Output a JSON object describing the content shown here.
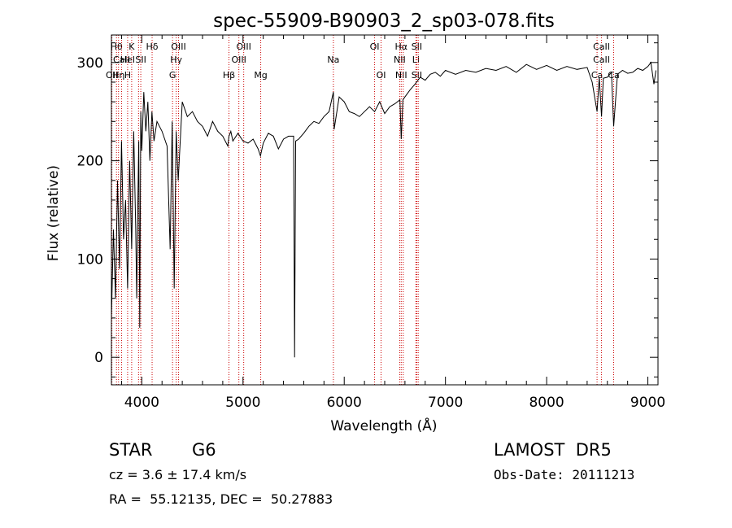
{
  "chart_data": {
    "type": "line",
    "title": "spec-55909-B90903_2_sp03-078.fits",
    "xlabel": "Wavelength (Å)",
    "ylabel": "Flux (relative)",
    "xlim": [
      3700,
      9100
    ],
    "ylim": [
      -28,
      328
    ],
    "xticks": [
      4000,
      5000,
      6000,
      7000,
      8000,
      9000
    ],
    "yticks": [
      0,
      100,
      200,
      300
    ],
    "grid": false,
    "line_color": "#000000",
    "marker_line_color": "#cc0000",
    "series": [
      {
        "x": [
          3700,
          3720,
          3740,
          3760,
          3780,
          3800,
          3820,
          3840,
          3860,
          3880,
          3900,
          3920,
          3940,
          3950,
          3960,
          3970,
          3980,
          3990,
          4000,
          4020,
          4040,
          4060,
          4080,
          4100,
          4120,
          4150,
          4200,
          4250,
          4280,
          4300,
          4320,
          4340,
          4360,
          4400,
          4450,
          4500,
          4550,
          4600,
          4650,
          4700,
          4750,
          4800,
          4850,
          4861,
          4880,
          4900,
          4950,
          5000,
          5050,
          5100,
          5150,
          5172,
          5200,
          5250,
          5300,
          5350,
          5400,
          5450,
          5500,
          5510,
          5520,
          5550,
          5600,
          5650,
          5700,
          5750,
          5800,
          5850,
          5893,
          5900,
          5950,
          6000,
          6050,
          6100,
          6150,
          6200,
          6250,
          6300,
          6350,
          6400,
          6450,
          6500,
          6550,
          6563,
          6580,
          6600,
          6650,
          6700,
          6750,
          6800,
          6850,
          6900,
          6950,
          7000,
          7100,
          7200,
          7300,
          7400,
          7500,
          7600,
          7700,
          7800,
          7900,
          8000,
          8100,
          8200,
          8300,
          8400,
          8450,
          8498,
          8520,
          8542,
          8560,
          8600,
          8640,
          8662,
          8700,
          8750,
          8800,
          8850,
          8900,
          8950,
          9000,
          9030,
          9060,
          9080
        ],
        "values": [
          40,
          130,
          60,
          180,
          90,
          220,
          120,
          160,
          70,
          200,
          110,
          230,
          130,
          60,
          150,
          220,
          30,
          250,
          210,
          270,
          230,
          260,
          200,
          250,
          220,
          240,
          230,
          215,
          110,
          240,
          70,
          230,
          180,
          260,
          245,
          250,
          240,
          235,
          225,
          240,
          230,
          225,
          215,
          225,
          230,
          220,
          228,
          220,
          218,
          222,
          212,
          205,
          218,
          228,
          225,
          212,
          222,
          225,
          225,
          0,
          220,
          222,
          228,
          235,
          240,
          238,
          245,
          250,
          270,
          232,
          265,
          260,
          250,
          248,
          245,
          250,
          255,
          250,
          260,
          248,
          255,
          258,
          262,
          222,
          262,
          265,
          272,
          278,
          285,
          282,
          288,
          290,
          286,
          292,
          288,
          292,
          290,
          294,
          292,
          296,
          290,
          298,
          293,
          297,
          292,
          296,
          293,
          295,
          280,
          250,
          285,
          245,
          284,
          285,
          290,
          235,
          288,
          292,
          289,
          290,
          294,
          292,
          296,
          300,
          278,
          292
        ]
      }
    ],
    "lines": [
      {
        "x": 3705,
        "labels": [
          "",
          "",
          "OII"
        ]
      },
      {
        "x": 3750,
        "labels": [
          "Hθ",
          "",
          ""
        ]
      },
      {
        "x": 3770,
        "labels": [
          "",
          "",
          "Hη"
        ]
      },
      {
        "x": 3800,
        "labels": [
          "",
          "CaII",
          ""
        ]
      },
      {
        "x": 3860,
        "labels": [
          "",
          "HeI",
          "H"
        ]
      },
      {
        "x": 3900,
        "labels": [
          "K",
          "",
          ""
        ]
      },
      {
        "x": 3968,
        "labels": [
          "",
          "",
          ""
        ]
      },
      {
        "x": 3990,
        "labels": [
          "",
          "SII",
          ""
        ]
      },
      {
        "x": 4102,
        "labels": [
          "Hδ",
          "",
          ""
        ]
      },
      {
        "x": 4304,
        "labels": [
          "",
          "",
          "G"
        ]
      },
      {
        "x": 4340,
        "labels": [
          "",
          "Hγ",
          ""
        ]
      },
      {
        "x": 4363,
        "labels": [
          "OIII",
          "",
          ""
        ]
      },
      {
        "x": 4861,
        "labels": [
          "",
          "",
          "Hβ"
        ]
      },
      {
        "x": 4959,
        "labels": [
          "",
          "OIII",
          ""
        ]
      },
      {
        "x": 5007,
        "labels": [
          "OIII",
          "",
          ""
        ]
      },
      {
        "x": 5175,
        "labels": [
          "",
          "",
          "Mg"
        ]
      },
      {
        "x": 5893,
        "labels": [
          "",
          "Na",
          ""
        ]
      },
      {
        "x": 6300,
        "labels": [
          "OI",
          "",
          ""
        ]
      },
      {
        "x": 6364,
        "labels": [
          "",
          "",
          "OI"
        ]
      },
      {
        "x": 6548,
        "labels": [
          "",
          "NII",
          ""
        ]
      },
      {
        "x": 6563,
        "labels": [
          "Hα",
          "",
          "NII"
        ]
      },
      {
        "x": 6583,
        "labels": [
          "",
          "",
          ""
        ]
      },
      {
        "x": 6708,
        "labels": [
          "",
          "Li",
          ""
        ]
      },
      {
        "x": 6717,
        "labels": [
          "SII",
          "",
          "SII"
        ]
      },
      {
        "x": 6731,
        "labels": [
          "",
          "",
          ""
        ]
      },
      {
        "x": 8498,
        "labels": [
          "",
          "",
          "Ca"
        ]
      },
      {
        "x": 8542,
        "labels": [
          "CaII",
          "CaII",
          ""
        ]
      },
      {
        "x": 8662,
        "labels": [
          "",
          "",
          "Ca"
        ]
      }
    ]
  },
  "info": {
    "object_class": "STAR",
    "subclass": "G6",
    "survey": "LAMOST  DR5",
    "cz": "cz = 3.6 ± 17.4 km/s",
    "obs_date": "Obs-Date: 20111213",
    "coords": "RA =  55.12135, DEC =  50.27883"
  }
}
